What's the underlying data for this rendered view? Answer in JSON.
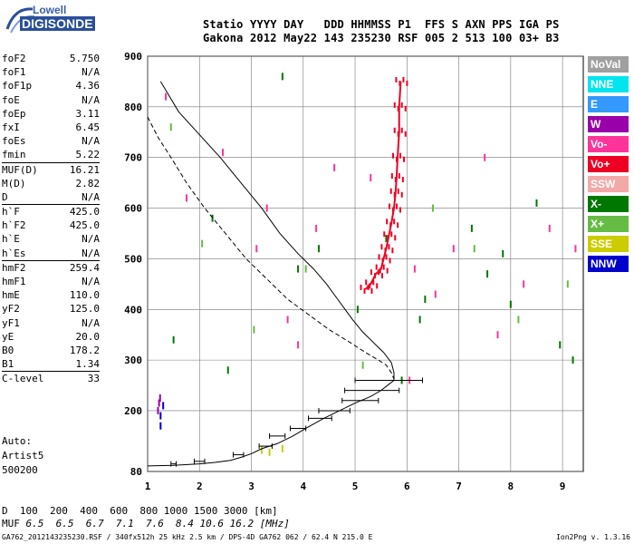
{
  "logo": {
    "brand": "Lowell",
    "product": "DIGISONDE"
  },
  "header": {
    "line1": "Statio YYYY DAY   DDD HHMMSS P1  FFS S AXN PPS IGA PS",
    "line2": "Gakona 2012 May22 143 235230 RSF 005 2 513 100 03+ B3"
  },
  "params": [
    {
      "key": "foF2",
      "value": "5.750"
    },
    {
      "key": "foF1",
      "value": "N/A"
    },
    {
      "key": "foF1p",
      "value": "4.36"
    },
    {
      "key": "foE",
      "value": "N/A"
    },
    {
      "key": "foEp",
      "value": "3.11"
    },
    {
      "key": "fxI",
      "value": "6.45"
    },
    {
      "key": "foEs",
      "value": "N/A"
    },
    {
      "key": "fmin",
      "value": "5.22"
    },
    {
      "key": "MUF(D)",
      "value": "16.21"
    },
    {
      "key": "M(D)",
      "value": "2.82"
    },
    {
      "key": "D",
      "value": "N/A"
    },
    {
      "key": "h`F",
      "value": "425.0"
    },
    {
      "key": "h`F2",
      "value": "425.0"
    },
    {
      "key": "h`E",
      "value": "N/A"
    },
    {
      "key": "h`Es",
      "value": "N/A"
    },
    {
      "key": "hmF2",
      "value": "259.4"
    },
    {
      "key": "hmF1",
      "value": "N/A"
    },
    {
      "key": "hmE",
      "value": "110.0"
    },
    {
      "key": "yF2",
      "value": "125.0"
    },
    {
      "key": "yF1",
      "value": "N/A"
    },
    {
      "key": "yE",
      "value": "20.0"
    },
    {
      "key": "B0",
      "value": "178.2"
    },
    {
      "key": "B1",
      "value": "1.34"
    },
    {
      "key": "C-level",
      "value": "33"
    }
  ],
  "auto": {
    "line1": "Auto:",
    "line2": "Artist5",
    "line3": "500200"
  },
  "legend": [
    {
      "label": "NoVal",
      "color": "#a0a0a0"
    },
    {
      "label": "NNE",
      "color": "#00e5ee"
    },
    {
      "label": "E",
      "color": "#3399ff"
    },
    {
      "label": "W",
      "color": "#9900aa"
    },
    {
      "label": "Vo-",
      "color": "#ff3399"
    },
    {
      "label": "Vo+",
      "color": "#ee0022"
    },
    {
      "label": "SSW",
      "color": "#f4a8a8"
    },
    {
      "label": "X-",
      "color": "#007700"
    },
    {
      "label": "X+",
      "color": "#66bb44"
    },
    {
      "label": "SSE",
      "color": "#cccc00"
    },
    {
      "label": "NNW",
      "color": "#0000cc"
    }
  ],
  "distance_table": {
    "d_label": "D",
    "d_values": "  100  200  400  600  800 1000 1500 3000 [km]",
    "muf_label": "MUF",
    "muf_values": " 6.5  6.5  6.7  7.1  7.6  8.4 10.6 16.2 [MHz]"
  },
  "footer": {
    "left": "GA762_2012143235230.RSF / 340fx512h 25 kHz 2.5 km / DPS-4D GA762 062 / 62.4 N 215.0 E",
    "right": "Ion2Png v. 1.3.16"
  },
  "chart_data": {
    "type": "scatter",
    "xlabel": "",
    "ylabel": "",
    "xlim": [
      1,
      9.4
    ],
    "ylim": [
      80,
      900
    ],
    "x_ticks": [
      1,
      2,
      3,
      4,
      5,
      6,
      7,
      8,
      9
    ],
    "y_ticks": [
      80,
      200,
      300,
      400,
      500,
      600,
      700,
      800,
      900
    ],
    "grid": true,
    "series": [
      {
        "type": "line",
        "color": "#000000",
        "x": [
          1.0,
          1.5,
          2.0,
          2.3,
          2.6,
          2.8,
          3.0,
          3.2,
          3.5,
          3.8,
          4.1,
          4.4,
          4.7,
          5.0,
          5.3,
          5.5,
          5.65,
          5.75,
          5.75,
          5.7,
          5.55,
          5.35,
          5.15,
          4.95,
          4.7,
          4.45,
          4.2,
          3.9,
          3.55,
          3.2,
          2.8,
          2.4,
          2.0,
          1.6,
          1.25
        ],
        "y": [
          91,
          92,
          95,
          98,
          102,
          108,
          115,
          125,
          135,
          150,
          168,
          185,
          200,
          215,
          228,
          240,
          252,
          260,
          275,
          295,
          315,
          335,
          355,
          380,
          415,
          450,
          480,
          510,
          550,
          600,
          650,
          700,
          745,
          790,
          850
        ]
      },
      {
        "type": "trace",
        "name": "Vo+",
        "color": "#ee0022",
        "x": [
          5.2,
          5.3,
          5.4,
          5.5,
          5.55,
          5.6,
          5.65,
          5.7,
          5.75,
          5.78,
          5.8,
          5.82,
          5.85,
          5.85,
          5.88
        ],
        "y": [
          440,
          450,
          470,
          480,
          500,
          520,
          545,
          570,
          600,
          630,
          660,
          700,
          750,
          800,
          850
        ]
      },
      {
        "type": "scatter",
        "name": "Vo-",
        "color": "#ff3399",
        "x": [
          1.35,
          1.75,
          2.45,
          3.1,
          3.3,
          3.7,
          3.9,
          4.6,
          5.3,
          6.15,
          6.55,
          6.9,
          7.5,
          8.25,
          8.75,
          9.25,
          7.75,
          6.05,
          4.25
        ],
        "y": [
          820,
          620,
          710,
          520,
          600,
          380,
          330,
          680,
          660,
          480,
          430,
          520,
          700,
          450,
          560,
          520,
          350,
          260,
          560
        ]
      },
      {
        "type": "scatter",
        "name": "X-",
        "color": "#007700",
        "x": [
          1.5,
          2.25,
          2.55,
          3.6,
          4.3,
          5.05,
          5.6,
          6.25,
          6.35,
          7.25,
          7.85,
          8.5,
          8.95,
          9.2,
          3.9,
          5.9,
          7.55,
          8.0
        ],
        "y": [
          340,
          580,
          280,
          860,
          520,
          400,
          540,
          380,
          420,
          560,
          510,
          610,
          330,
          300,
          480,
          260,
          470,
          410
        ]
      },
      {
        "type": "scatter",
        "name": "X+",
        "color": "#66bb44",
        "x": [
          1.45,
          2.05,
          3.05,
          4.05,
          5.15,
          6.5,
          7.3,
          8.15,
          9.1
        ],
        "y": [
          760,
          530,
          360,
          480,
          290,
          600,
          520,
          380,
          450
        ]
      },
      {
        "type": "scatter",
        "name": "SSE",
        "color": "#cccc00",
        "x": [
          3.2,
          3.35,
          3.6
        ],
        "y": [
          122,
          118,
          125
        ]
      },
      {
        "type": "scatter",
        "name": "NNW",
        "color": "#0000cc",
        "x": [
          1.25,
          1.25,
          1.3
        ],
        "y": [
          170,
          190,
          210
        ]
      },
      {
        "type": "scatter",
        "name": "W",
        "color": "#9900aa",
        "x": [
          1.2,
          1.22,
          1.24
        ],
        "y": [
          200,
          215,
          225
        ]
      }
    ],
    "error_bars": [
      {
        "x": 5.75,
        "y": 260,
        "xlo": 5.0,
        "xhi": 6.3
      },
      {
        "x": 5.25,
        "y": 240,
        "xlo": 4.8,
        "xhi": 5.85
      },
      {
        "x": 5.0,
        "y": 220,
        "xlo": 4.75,
        "xhi": 5.45
      },
      {
        "x": 4.6,
        "y": 200,
        "xlo": 4.3,
        "xhi": 4.9
      },
      {
        "x": 4.3,
        "y": 185,
        "xlo": 4.1,
        "xhi": 4.55
      },
      {
        "x": 3.9,
        "y": 165,
        "xlo": 3.75,
        "xhi": 4.05
      },
      {
        "x": 3.5,
        "y": 150,
        "xlo": 3.35,
        "xhi": 3.65
      },
      {
        "x": 3.25,
        "y": 130,
        "xlo": 3.15,
        "xhi": 3.4
      },
      {
        "x": 2.75,
        "y": 113,
        "xlo": 2.65,
        "xhi": 2.85
      },
      {
        "x": 2.0,
        "y": 100,
        "xlo": 1.9,
        "xhi": 2.1
      },
      {
        "x": 1.5,
        "y": 95,
        "xlo": 1.45,
        "xhi": 1.55
      }
    ],
    "dashed_curve": {
      "x": [
        1.0,
        1.2,
        1.45,
        1.75,
        2.1,
        2.5,
        2.9,
        3.3,
        3.7,
        4.1,
        4.5,
        4.9,
        5.2,
        5.45,
        5.6,
        5.7,
        5.75
      ],
      "y": [
        780,
        740,
        700,
        650,
        600,
        550,
        500,
        460,
        420,
        390,
        360,
        335,
        315,
        300,
        290,
        275,
        262
      ]
    }
  }
}
